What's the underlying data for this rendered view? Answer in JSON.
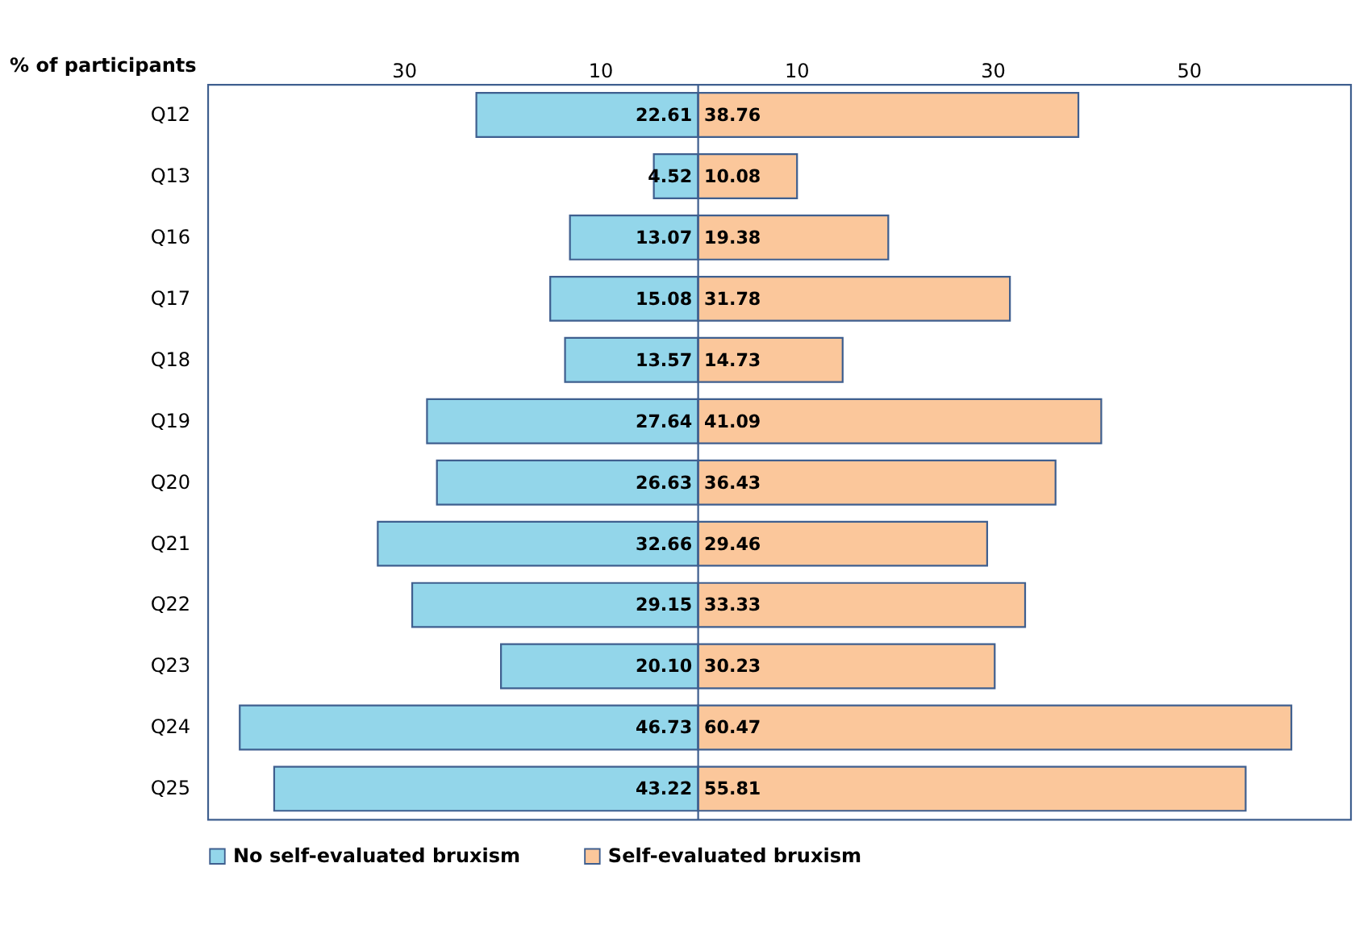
{
  "chart_data": {
    "type": "bar",
    "orientation": "horizontal",
    "xlabel": "% of participants",
    "categories": [
      "Q12",
      "Q13",
      "Q16",
      "Q17",
      "Q18",
      "Q19",
      "Q20",
      "Q21",
      "Q22",
      "Q23",
      "Q24",
      "Q25"
    ],
    "series": [
      {
        "name": "No self-evaluated bruxism",
        "color": "#93d6ea",
        "values": [
          22.61,
          4.52,
          13.07,
          15.08,
          13.57,
          27.64,
          26.63,
          32.66,
          29.15,
          20.1,
          46.73,
          43.22
        ],
        "base": [
          -22.61,
          -4.52,
          -13.07,
          -15.08,
          -13.57,
          -27.64,
          -26.63,
          -32.66,
          -29.15,
          -20.1,
          -46.73,
          -43.22
        ],
        "value_labels": [
          "22.61",
          "4.52",
          "13.07",
          "15.08",
          "13.57",
          "27.64",
          "26.63",
          "32.66",
          "29.15",
          "20.10",
          "46.73",
          "43.22"
        ]
      },
      {
        "name": "Self-evaluated bruxism",
        "color": "#fbc79b",
        "values": [
          38.76,
          10.08,
          19.38,
          31.78,
          14.73,
          41.09,
          36.43,
          29.46,
          33.33,
          30.23,
          60.47,
          55.81
        ],
        "base": [
          0,
          0,
          0,
          0,
          0,
          0,
          0,
          0,
          0,
          0,
          0,
          0
        ],
        "value_labels": [
          "38.76",
          "10.08",
          "19.38",
          "31.78",
          "14.73",
          "41.09",
          "36.43",
          "29.46",
          "33.33",
          "30.23",
          "60.47",
          "55.81"
        ]
      }
    ],
    "xlim": [
      -50,
      66.5
    ],
    "xticks": [
      {
        "value": -30,
        "label": "30"
      },
      {
        "value": -10,
        "label": "10"
      },
      10,
      30,
      50
    ],
    "ref_lines": [
      {
        "axis": "x",
        "value": 0
      }
    ],
    "grid": false,
    "legend": "bottom"
  }
}
